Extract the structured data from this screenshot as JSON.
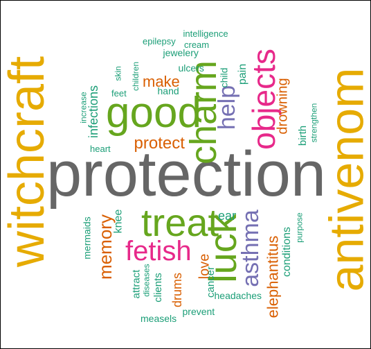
{
  "colors": {
    "teal": "#1b9e77",
    "orange": "#d95f02",
    "purple": "#7570b3",
    "magenta": "#e7298a",
    "green": "#66a61e",
    "gold": "#e6ab02",
    "gray": "#666666"
  },
  "words": [
    {
      "text": "protection",
      "color": "gray",
      "orientation": "horizontal"
    },
    {
      "text": "witchcraft",
      "color": "gold",
      "orientation": "vertical"
    },
    {
      "text": "antivenom",
      "color": "gold",
      "orientation": "vertical"
    },
    {
      "text": "good",
      "color": "green",
      "orientation": "horizontal"
    },
    {
      "text": "treat",
      "color": "green",
      "orientation": "horizontal"
    },
    {
      "text": "charm",
      "color": "green",
      "orientation": "vertical"
    },
    {
      "text": "luck",
      "color": "green",
      "orientation": "vertical"
    },
    {
      "text": "objects",
      "color": "magenta",
      "orientation": "vertical"
    },
    {
      "text": "fetish",
      "color": "magenta",
      "orientation": "horizontal"
    },
    {
      "text": "help",
      "color": "purple",
      "orientation": "vertical"
    },
    {
      "text": "asthma",
      "color": "purple",
      "orientation": "vertical"
    },
    {
      "text": "protect",
      "color": "orange",
      "orientation": "horizontal"
    },
    {
      "text": "make",
      "color": "orange",
      "orientation": "horizontal"
    },
    {
      "text": "memory",
      "color": "orange",
      "orientation": "vertical"
    },
    {
      "text": "drowning",
      "color": "orange",
      "orientation": "vertical"
    },
    {
      "text": "elephantitus",
      "color": "orange",
      "orientation": "vertical"
    },
    {
      "text": "love",
      "color": "orange",
      "orientation": "vertical"
    },
    {
      "text": "drums",
      "color": "orange",
      "orientation": "vertical"
    },
    {
      "text": "pain",
      "color": "teal",
      "orientation": "vertical"
    },
    {
      "text": "child",
      "color": "teal",
      "orientation": "vertical"
    },
    {
      "text": "infections",
      "color": "teal",
      "orientation": "vertical"
    },
    {
      "text": "increase",
      "color": "teal",
      "orientation": "vertical"
    },
    {
      "text": "heart",
      "color": "teal",
      "orientation": "horizontal"
    },
    {
      "text": "feet",
      "color": "teal",
      "orientation": "horizontal"
    },
    {
      "text": "skin",
      "color": "teal",
      "orientation": "vertical"
    },
    {
      "text": "children",
      "color": "teal",
      "orientation": "vertical"
    },
    {
      "text": "hand",
      "color": "teal",
      "orientation": "horizontal"
    },
    {
      "text": "ulcers",
      "color": "teal",
      "orientation": "horizontal"
    },
    {
      "text": "jewelery",
      "color": "teal",
      "orientation": "horizontal"
    },
    {
      "text": "epilepsy",
      "color": "teal",
      "orientation": "horizontal"
    },
    {
      "text": "intelligence",
      "color": "teal",
      "orientation": "horizontal"
    },
    {
      "text": "cream",
      "color": "teal",
      "orientation": "horizontal"
    },
    {
      "text": "birth",
      "color": "teal",
      "orientation": "vertical"
    },
    {
      "text": "strengthen",
      "color": "teal",
      "orientation": "vertical"
    },
    {
      "text": "mermaids",
      "color": "teal",
      "orientation": "vertical"
    },
    {
      "text": "knee",
      "color": "teal",
      "orientation": "vertical"
    },
    {
      "text": "ear",
      "color": "teal",
      "orientation": "horizontal"
    },
    {
      "text": "conditions",
      "color": "teal",
      "orientation": "vertical"
    },
    {
      "text": "purpose",
      "color": "teal",
      "orientation": "vertical"
    },
    {
      "text": "attract",
      "color": "teal",
      "orientation": "vertical"
    },
    {
      "text": "diseases",
      "color": "teal",
      "orientation": "vertical"
    },
    {
      "text": "clients",
      "color": "teal",
      "orientation": "vertical"
    },
    {
      "text": "cancer",
      "color": "teal",
      "orientation": "vertical"
    },
    {
      "text": "headaches",
      "color": "teal",
      "orientation": "horizontal"
    },
    {
      "text": "measels",
      "color": "teal",
      "orientation": "horizontal"
    },
    {
      "text": "prevent",
      "color": "teal",
      "orientation": "horizontal"
    }
  ]
}
